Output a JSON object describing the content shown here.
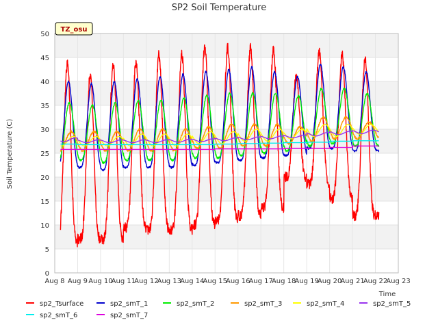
{
  "chart_data": {
    "type": "line",
    "title": "SP2 Soil Temperature",
    "xlabel": "Time",
    "ylabel": "Soil Temperature (C)",
    "ylim": [
      0,
      50
    ],
    "xlim": [
      0,
      15
    ],
    "yticks": [
      0,
      5,
      10,
      15,
      20,
      25,
      30,
      35,
      40,
      45,
      50
    ],
    "xtick_labels": [
      "Aug 8",
      "Aug 9",
      "Aug 10",
      "Aug 11",
      "Aug 12",
      "Aug 13",
      "Aug 14",
      "Aug 15",
      "Aug 16",
      "Aug 17",
      "Aug 18",
      "Aug 19",
      "Aug 20",
      "Aug 21",
      "Aug 22",
      "Aug 23"
    ],
    "annotation": "TZ_osu",
    "grid": "horizontal bands",
    "legend_position": "bottom",
    "day_offsets": [
      0,
      1,
      2,
      3,
      4,
      5,
      6,
      7,
      8,
      9,
      10,
      11,
      12,
      13
    ],
    "series": [
      {
        "name": "sp2_Tsurface",
        "color": "#ff0000",
        "daily_max": [
          43.5,
          41.5,
          43.5,
          44.0,
          45.5,
          45.5,
          47.0,
          47.0,
          47.0,
          46.5,
          41.0,
          46.0,
          45.5,
          44.5
        ],
        "daily_min": [
          6.5,
          7.0,
          7.0,
          9.5,
          9.0,
          9.0,
          10.0,
          11.0,
          12.0,
          13.5,
          20.0,
          18.5,
          15.5,
          12.0
        ],
        "phase": 0.55,
        "sharp": 2.2
      },
      {
        "name": "sp2_smT_1",
        "color": "#0000cc",
        "daily_max": [
          40.0,
          39.5,
          40.0,
          40.5,
          41.0,
          41.5,
          42.0,
          42.5,
          43.0,
          42.0,
          41.0,
          43.5,
          43.0,
          42.0
        ],
        "daily_min": [
          22.0,
          22.0,
          21.5,
          22.0,
          22.0,
          22.0,
          22.5,
          23.0,
          23.5,
          24.0,
          24.5,
          26.0,
          26.0,
          25.5
        ],
        "phase": 0.6,
        "sharp": 1.6
      },
      {
        "name": "sp2_smT_2",
        "color": "#00ee00",
        "daily_max": [
          35.5,
          35.0,
          35.5,
          36.0,
          36.0,
          36.5,
          37.0,
          37.5,
          37.5,
          37.5,
          37.0,
          38.5,
          38.5,
          37.5
        ],
        "daily_min": [
          23.5,
          23.5,
          23.0,
          23.5,
          23.5,
          23.5,
          24.0,
          24.0,
          24.5,
          25.0,
          25.5,
          26.5,
          27.0,
          26.5
        ],
        "phase": 0.64,
        "sharp": 1.3
      },
      {
        "name": "sp2_smT_3",
        "color": "#ff9900",
        "daily_max": [
          29.5,
          29.5,
          29.5,
          30.0,
          30.0,
          30.0,
          30.5,
          31.0,
          31.0,
          31.0,
          30.5,
          32.5,
          32.5,
          31.5
        ],
        "daily_min": [
          25.5,
          25.5,
          25.5,
          25.5,
          25.5,
          25.5,
          26.0,
          26.0,
          26.5,
          26.5,
          27.0,
          27.5,
          28.0,
          28.0
        ],
        "phase": 0.72,
        "sharp": 1.0
      },
      {
        "name": "sp2_smT_4",
        "color": "#ffff00",
        "daily_max": [
          28.5,
          28.5,
          28.5,
          29.0,
          29.0,
          29.0,
          29.5,
          29.5,
          30.0,
          30.0,
          30.0,
          31.0,
          31.0,
          31.0
        ],
        "daily_min": [
          26.5,
          26.5,
          26.5,
          26.5,
          26.5,
          26.5,
          27.0,
          27.0,
          27.5,
          27.5,
          28.0,
          28.5,
          28.5,
          29.0
        ],
        "phase": 0.8,
        "sharp": 1.0
      },
      {
        "name": "sp2_smT_5",
        "color": "#9933ee",
        "daily_max": [
          28.2,
          27.8,
          27.8,
          27.8,
          27.8,
          27.9,
          28.0,
          28.2,
          28.4,
          28.6,
          28.8,
          29.3,
          29.6,
          29.8
        ],
        "daily_min": [
          27.4,
          27.2,
          27.2,
          27.2,
          27.2,
          27.3,
          27.4,
          27.6,
          27.8,
          28.0,
          28.2,
          28.6,
          28.9,
          29.1
        ],
        "phase": 0.9,
        "sharp": 1.0
      },
      {
        "name": "sp2_smT_6",
        "color": "#00eeee",
        "daily_max": [
          26.9,
          26.8,
          26.8,
          26.8,
          26.8,
          26.8,
          26.8,
          26.9,
          27.0,
          27.1,
          27.2,
          27.3,
          27.5,
          27.6
        ],
        "daily_min": [
          26.9,
          26.8,
          26.8,
          26.8,
          26.8,
          26.8,
          26.8,
          26.9,
          27.0,
          27.1,
          27.2,
          27.3,
          27.5,
          27.6
        ],
        "phase": 0.9,
        "sharp": 1.0
      },
      {
        "name": "sp2_smT_7",
        "color": "#dd00dd",
        "daily_max": [
          25.8,
          25.8,
          25.8,
          25.8,
          25.8,
          25.8,
          25.8,
          25.9,
          25.9,
          25.9,
          26.0,
          26.0,
          26.2,
          26.5
        ],
        "daily_min": [
          25.8,
          25.8,
          25.8,
          25.8,
          25.8,
          25.8,
          25.8,
          25.9,
          25.9,
          25.9,
          26.0,
          26.0,
          26.2,
          26.5
        ],
        "phase": 0.9,
        "sharp": 1.0
      }
    ]
  }
}
